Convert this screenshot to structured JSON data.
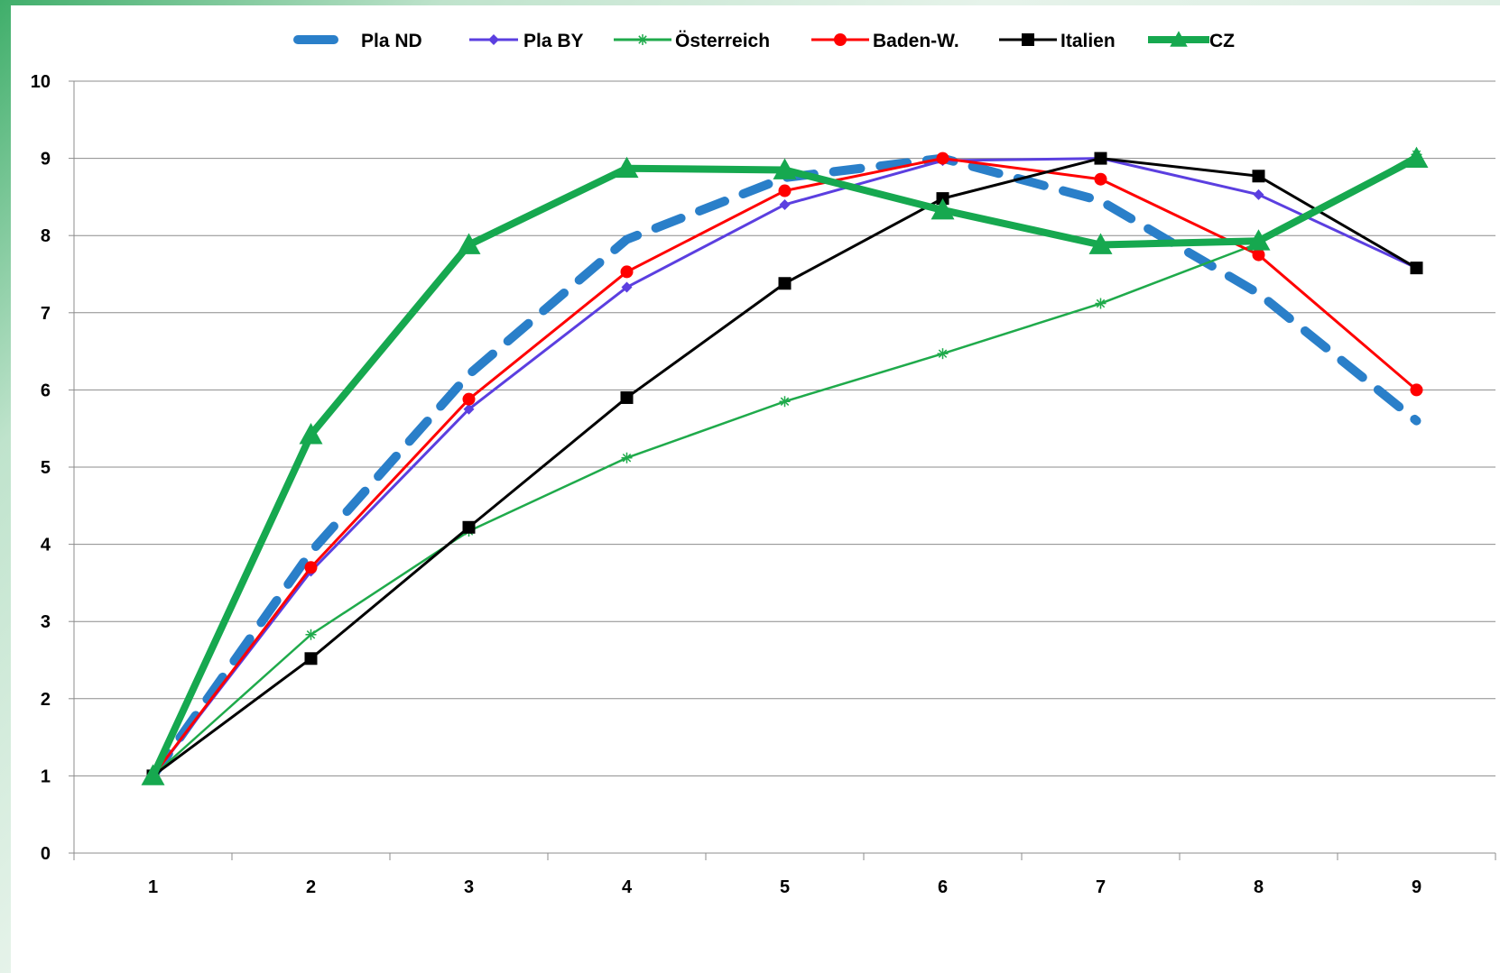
{
  "chart_data": {
    "type": "line",
    "title": "",
    "xlabel": "",
    "ylabel": "",
    "categories": [
      "1",
      "2",
      "3",
      "4",
      "5",
      "6",
      "7",
      "8",
      "9"
    ],
    "ylim": [
      0,
      10
    ],
    "yticks": [
      "0",
      "1",
      "2",
      "3",
      "4",
      "5",
      "6",
      "7",
      "8",
      "9",
      "10"
    ],
    "grid": "horizontal",
    "legend_position": "top",
    "series": [
      {
        "name": "Pla ND",
        "values": [
          1.0,
          3.9,
          6.2,
          7.95,
          8.75,
          9.0,
          8.45,
          7.25,
          5.6
        ],
        "color": "#2a7fc9",
        "style": "dashed",
        "marker": "none"
      },
      {
        "name": "Pla BY",
        "values": [
          1.0,
          3.65,
          5.75,
          7.33,
          8.4,
          8.97,
          9.0,
          8.53,
          7.58
        ],
        "color": "#5b3fe0",
        "style": "solid",
        "marker": "diamond"
      },
      {
        "name": "Österreich",
        "values": [
          1.0,
          2.83,
          4.17,
          5.12,
          5.85,
          6.47,
          7.12,
          7.9,
          9.05
        ],
        "color": "#1faa4b",
        "style": "solid",
        "marker": "asterisk"
      },
      {
        "name": "Baden-W.",
        "values": [
          1.0,
          3.7,
          5.88,
          7.53,
          8.58,
          9.0,
          8.73,
          7.75,
          6.0
        ],
        "color": "#ff0000",
        "style": "solid",
        "marker": "circle"
      },
      {
        "name": "Italien",
        "values": [
          1.0,
          2.52,
          4.22,
          5.9,
          7.38,
          8.48,
          9.0,
          8.77,
          7.58
        ],
        "color": "#000000",
        "style": "solid",
        "marker": "square"
      },
      {
        "name": "CZ",
        "values": [
          1.0,
          5.42,
          7.88,
          8.87,
          8.85,
          8.33,
          7.88,
          7.93,
          9.0
        ],
        "color": "#16a84f",
        "style": "solid-thick",
        "marker": "triangle"
      }
    ]
  }
}
